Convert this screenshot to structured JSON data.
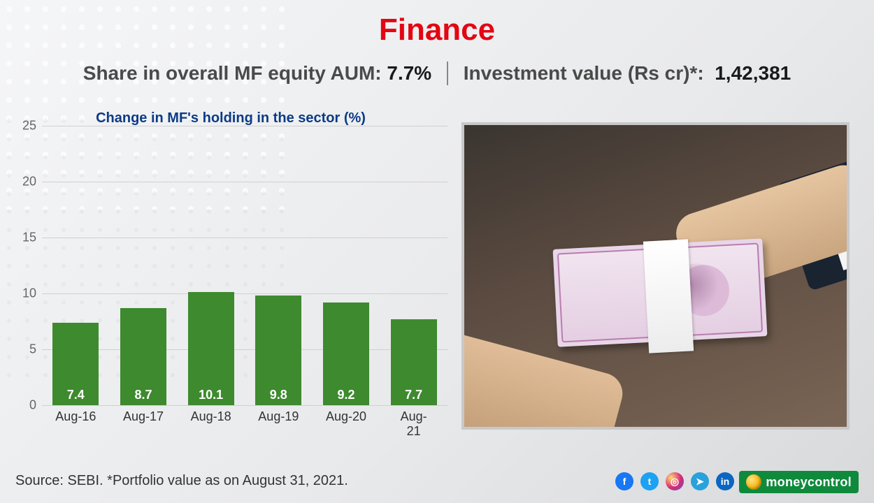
{
  "title": {
    "text": "Finance",
    "color": "#e30613",
    "fontsize": 44
  },
  "subhead": {
    "left_label": "Share in overall MF equity AUM:",
    "left_value": "7.7%",
    "right_label": "Investment value (Rs cr)*:",
    "right_value": "1,42,381",
    "color": "#4a4a4a",
    "value_color": "#1a1a1a"
  },
  "chart": {
    "type": "bar",
    "title": "Change in MF's holding in the sector (%)",
    "title_color": "#0b3b87",
    "categories": [
      "Aug-16",
      "Aug-17",
      "Aug-18",
      "Aug-19",
      "Aug-20",
      "Aug-21"
    ],
    "values": [
      7.4,
      8.7,
      10.1,
      9.8,
      9.2,
      7.7
    ],
    "bar_color": "#3e8a2f",
    "value_label_color": "#ffffff",
    "ylim": [
      0,
      25
    ],
    "ytick_step": 5,
    "grid_color": "#d0d0d0",
    "axis_label_color": "#666666",
    "x_label_color": "#333333",
    "bar_width_ratio": 0.68,
    "background": "transparent"
  },
  "image": {
    "semantic": "hands-exchanging-indian-currency",
    "border_color": "#c8c8c8"
  },
  "source": "Source: SEBI. *Portfolio value as on August 31, 2021.",
  "social": [
    {
      "name": "facebook",
      "glyph": "f"
    },
    {
      "name": "twitter",
      "glyph": "t"
    },
    {
      "name": "instagram",
      "glyph": "◎"
    },
    {
      "name": "telegram",
      "glyph": "➤"
    },
    {
      "name": "linkedin",
      "glyph": "in"
    }
  ],
  "brand": "moneycontrol"
}
